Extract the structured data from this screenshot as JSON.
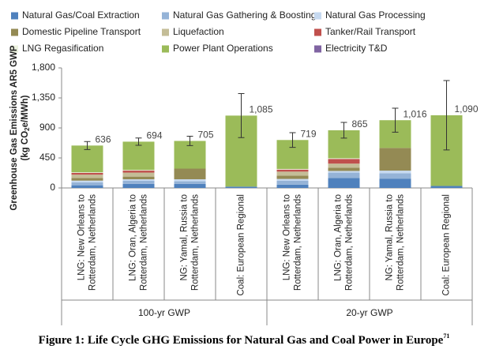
{
  "chart_data": {
    "type": "stacked-bar",
    "ylabel": [
      "Greenhouse Gas Emissions AR5 GWP",
      "(kg CO",
      "2",
      "e/MWh)"
    ],
    "caption": "Figure 1:  Life Cycle GHG Emissions for Natural Gas and Coal Power in Europe",
    "caption_ref": "71",
    "categories": [
      [
        "LNG: New Orleans to",
        "Rotterdam, Netherlands"
      ],
      [
        "LNG: Oran, Algeria to",
        "Rotterdam, Netherlands"
      ],
      [
        "NG: Yamal, Russia to",
        "Rotterdam, Netherlands"
      ],
      [
        "Coal: European Regional"
      ],
      [
        "LNG: New Orleans to",
        "Rotterdam, Netherlands"
      ],
      [
        "LNG: Oran, Algeria to",
        "Rotterdam, Netherlands"
      ],
      [
        "NG: Yamal, Russia to",
        "Rotterdam, Netherlands"
      ],
      [
        "Coal: European Regional"
      ]
    ],
    "groups": [
      "100-yr GWP",
      "20-yr GWP"
    ],
    "series": [
      {
        "name": "Natural Gas/Coal Extraction",
        "color": "#4f81bd",
        "values": [
          40,
          60,
          60,
          20,
          50,
          150,
          140,
          30
        ]
      },
      {
        "name": "Natural Gas Gathering & Boosting",
        "color": "#95b3d7",
        "values": [
          45,
          50,
          40,
          0,
          60,
          80,
          80,
          0
        ]
      },
      {
        "name": "Natural Gas Processing",
        "color": "#c6d9f0",
        "values": [
          25,
          20,
          30,
          0,
          25,
          25,
          40,
          0
        ]
      },
      {
        "name": "Domestic Pipeline Transport",
        "color": "#948a54",
        "values": [
          40,
          40,
          160,
          0,
          50,
          50,
          340,
          0
        ]
      },
      {
        "name": "Liquefaction",
        "color": "#c4bd97",
        "values": [
          50,
          60,
          0,
          0,
          60,
          60,
          0,
          0
        ]
      },
      {
        "name": "Tanker/Rail Transport",
        "color": "#c0504d",
        "values": [
          25,
          30,
          0,
          0,
          30,
          70,
          0,
          0
        ]
      },
      {
        "name": "LNG Regasification",
        "color": "#ebf1de",
        "values": [
          10,
          10,
          0,
          0,
          10,
          10,
          0,
          0
        ]
      },
      {
        "name": "Power Plant Operations",
        "color": "#9bbb59",
        "values": [
          401,
          424,
          415,
          1065,
          434,
          420,
          416,
          1060
        ]
      },
      {
        "name": "Electricity T&D",
        "color": "#8064a2",
        "values": [
          0,
          0,
          0,
          0,
          0,
          0,
          0,
          0
        ]
      }
    ],
    "totals": {
      "values": [
        636,
        694,
        705,
        1085,
        719,
        865,
        1016,
        1090
      ],
      "value_labels": [
        "636",
        "694",
        "705",
        "1,085",
        "719",
        "865",
        "1,016",
        "1,090"
      ],
      "errors": [
        60,
        55,
        70,
        330,
        110,
        118,
        180,
        520
      ]
    },
    "ylim": [
      0,
      1800
    ],
    "yticks": [
      0,
      {
        "value": 450,
        "label": "450"
      },
      {
        "value": 900,
        "label": "900"
      },
      {
        "value": 1350,
        "label": "1,350"
      },
      {
        "value": 1800,
        "label": "1,800"
      }
    ]
  }
}
